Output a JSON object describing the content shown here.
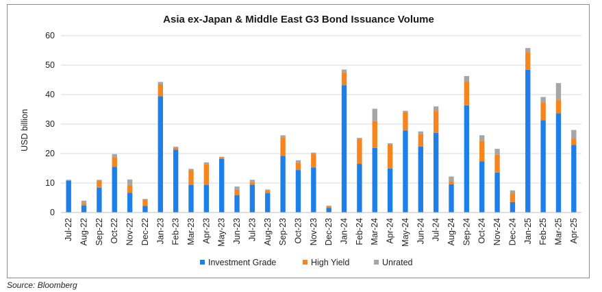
{
  "source": "Source: Bloomberg",
  "chart_data": {
    "type": "bar",
    "stacked": true,
    "title": "Asia ex-Japan & Middle East G3 Bond Issuance Volume",
    "xlabel": "",
    "ylabel": "USD billion",
    "ylim": [
      0,
      60
    ],
    "yticks": [
      0,
      10,
      20,
      30,
      40,
      50,
      60
    ],
    "grid": true,
    "legend_position": "bottom",
    "categories": [
      "Jul-22",
      "Aug-22",
      "Sep-22",
      "Oct-22",
      "Nov-22",
      "Dec-22",
      "Jan-23",
      "Feb-23",
      "Mar-23",
      "Apr-23",
      "May-23",
      "Jun-23",
      "Jul-23",
      "Aug-23",
      "Sep-23",
      "Oct-23",
      "Nov-23",
      "Dec-23",
      "Jan-24",
      "Feb-24",
      "Mar-24",
      "Apr-24",
      "May-24",
      "Jun-24",
      "Jul-24",
      "Aug-24",
      "Sep-24",
      "Oct-24",
      "Nov-24",
      "Dec-24",
      "Jan-25",
      "Feb-25",
      "Mar-25",
      "Apr-25"
    ],
    "series": [
      {
        "name": "Investment Grade",
        "color": "#1f7fe8",
        "values": [
          10.8,
          2.4,
          8.4,
          15.5,
          6.7,
          2.2,
          39.4,
          21.3,
          9.3,
          9.3,
          18.2,
          5.9,
          9.4,
          6.6,
          19.2,
          14.4,
          15.3,
          1.6,
          43.2,
          16.5,
          21.9,
          14.9,
          27.8,
          22.4,
          27.0,
          9.6,
          36.3,
          17.4,
          13.5,
          3.5,
          48.4,
          31.3,
          33.6,
          22.9
        ]
      },
      {
        "name": "High Yield",
        "color": "#f5851f",
        "values": [
          0.1,
          0.8,
          2.3,
          3.3,
          2.5,
          2.2,
          4.1,
          0.7,
          5.0,
          7.0,
          0.5,
          1.8,
          0.9,
          0.9,
          6.3,
          2.5,
          4.6,
          0.4,
          4.3,
          8.5,
          9.1,
          8.2,
          6.3,
          4.2,
          7.4,
          1.0,
          8.0,
          6.8,
          6.1,
          3.0,
          6.0,
          6.1,
          4.6,
          2.1
        ]
      },
      {
        "name": "Unrated",
        "color": "#a6a6a6",
        "values": [
          0.2,
          0.8,
          0.4,
          1.0,
          2.0,
          0.2,
          0.8,
          0.3,
          0.5,
          0.7,
          0.2,
          1.1,
          0.8,
          0.3,
          0.7,
          0.8,
          0.4,
          0.3,
          1.0,
          0.3,
          4.2,
          0.4,
          0.4,
          0.9,
          1.6,
          1.6,
          2.0,
          2.0,
          2.0,
          1.0,
          1.4,
          1.8,
          5.7,
          3.0
        ]
      }
    ]
  }
}
